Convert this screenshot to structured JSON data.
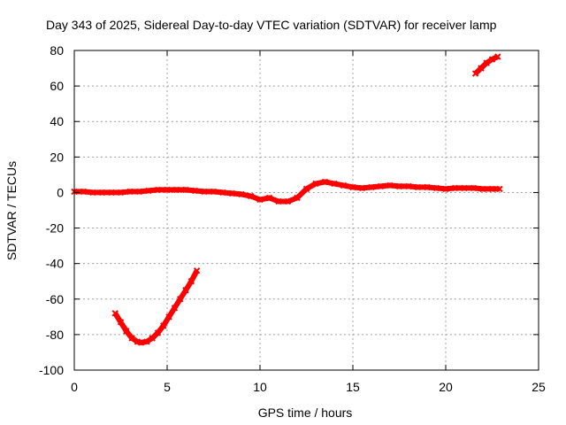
{
  "chart_data": {
    "type": "scatter",
    "title": "Day 343 of 2025, Sidereal Day-to-day VTEC variation (SDTVAR) for receiver lamp",
    "xlabel": "GPS time / hours",
    "ylabel": "SDTVAR / TECUs",
    "xlim": [
      0,
      25
    ],
    "ylim": [
      -100,
      80
    ],
    "x_ticks": [
      0,
      5,
      10,
      15,
      20,
      25
    ],
    "y_ticks": [
      -100,
      -80,
      -60,
      -40,
      -20,
      0,
      20,
      40,
      60,
      80
    ],
    "x_tick_labels": [
      "0",
      "5",
      "10",
      "15",
      "20",
      "25"
    ],
    "y_tick_labels": [
      "-100",
      "-80",
      "-60",
      "-40",
      "-20",
      "0",
      "20",
      "40",
      "60",
      "80"
    ],
    "grid": true,
    "series_color": "#ff0000",
    "series": [
      {
        "name": "main",
        "x": [
          0.0,
          0.5,
          1.0,
          1.5,
          2.0,
          2.5,
          3.0,
          3.5,
          4.0,
          4.5,
          5.0,
          5.5,
          6.0,
          6.5,
          7.0,
          7.5,
          8.0,
          8.5,
          9.0,
          9.5,
          10.0,
          10.5,
          11.0,
          11.5,
          12.0,
          12.5,
          13.0,
          13.5,
          14.0,
          14.5,
          15.0,
          15.5,
          16.0,
          16.5,
          17.0,
          17.5,
          18.0,
          18.5,
          19.0,
          19.5,
          20.0,
          20.5,
          21.0,
          21.5,
          22.0,
          22.5,
          22.9
        ],
        "y": [
          0.5,
          0.5,
          0,
          0,
          0,
          0,
          0.5,
          0.5,
          1,
          1.5,
          1.5,
          1.5,
          1.5,
          1,
          0.5,
          0.5,
          0,
          -0.5,
          -1,
          -2,
          -4,
          -3,
          -5,
          -5,
          -3,
          2,
          5,
          6,
          5,
          4,
          3,
          2.5,
          3,
          3.5,
          4,
          3.5,
          3.5,
          3,
          3,
          2.5,
          2,
          2.5,
          2.5,
          2.5,
          2,
          2,
          2
        ]
      },
      {
        "name": "arc-low",
        "x": [
          2.2,
          2.5,
          2.8,
          3.1,
          3.4,
          3.6,
          3.9,
          4.2,
          4.5,
          4.8,
          5.1,
          5.4,
          5.7,
          6.0,
          6.3,
          6.6
        ],
        "y": [
          -68,
          -73,
          -78,
          -82,
          -84,
          -84.5,
          -84,
          -82,
          -79,
          -75,
          -70,
          -65,
          -60,
          -55,
          -50,
          -44
        ]
      },
      {
        "name": "arc-high",
        "x": [
          21.6,
          21.9,
          22.2,
          22.5,
          22.8
        ],
        "y": [
          67,
          70,
          73,
          75,
          76.5
        ]
      }
    ]
  }
}
